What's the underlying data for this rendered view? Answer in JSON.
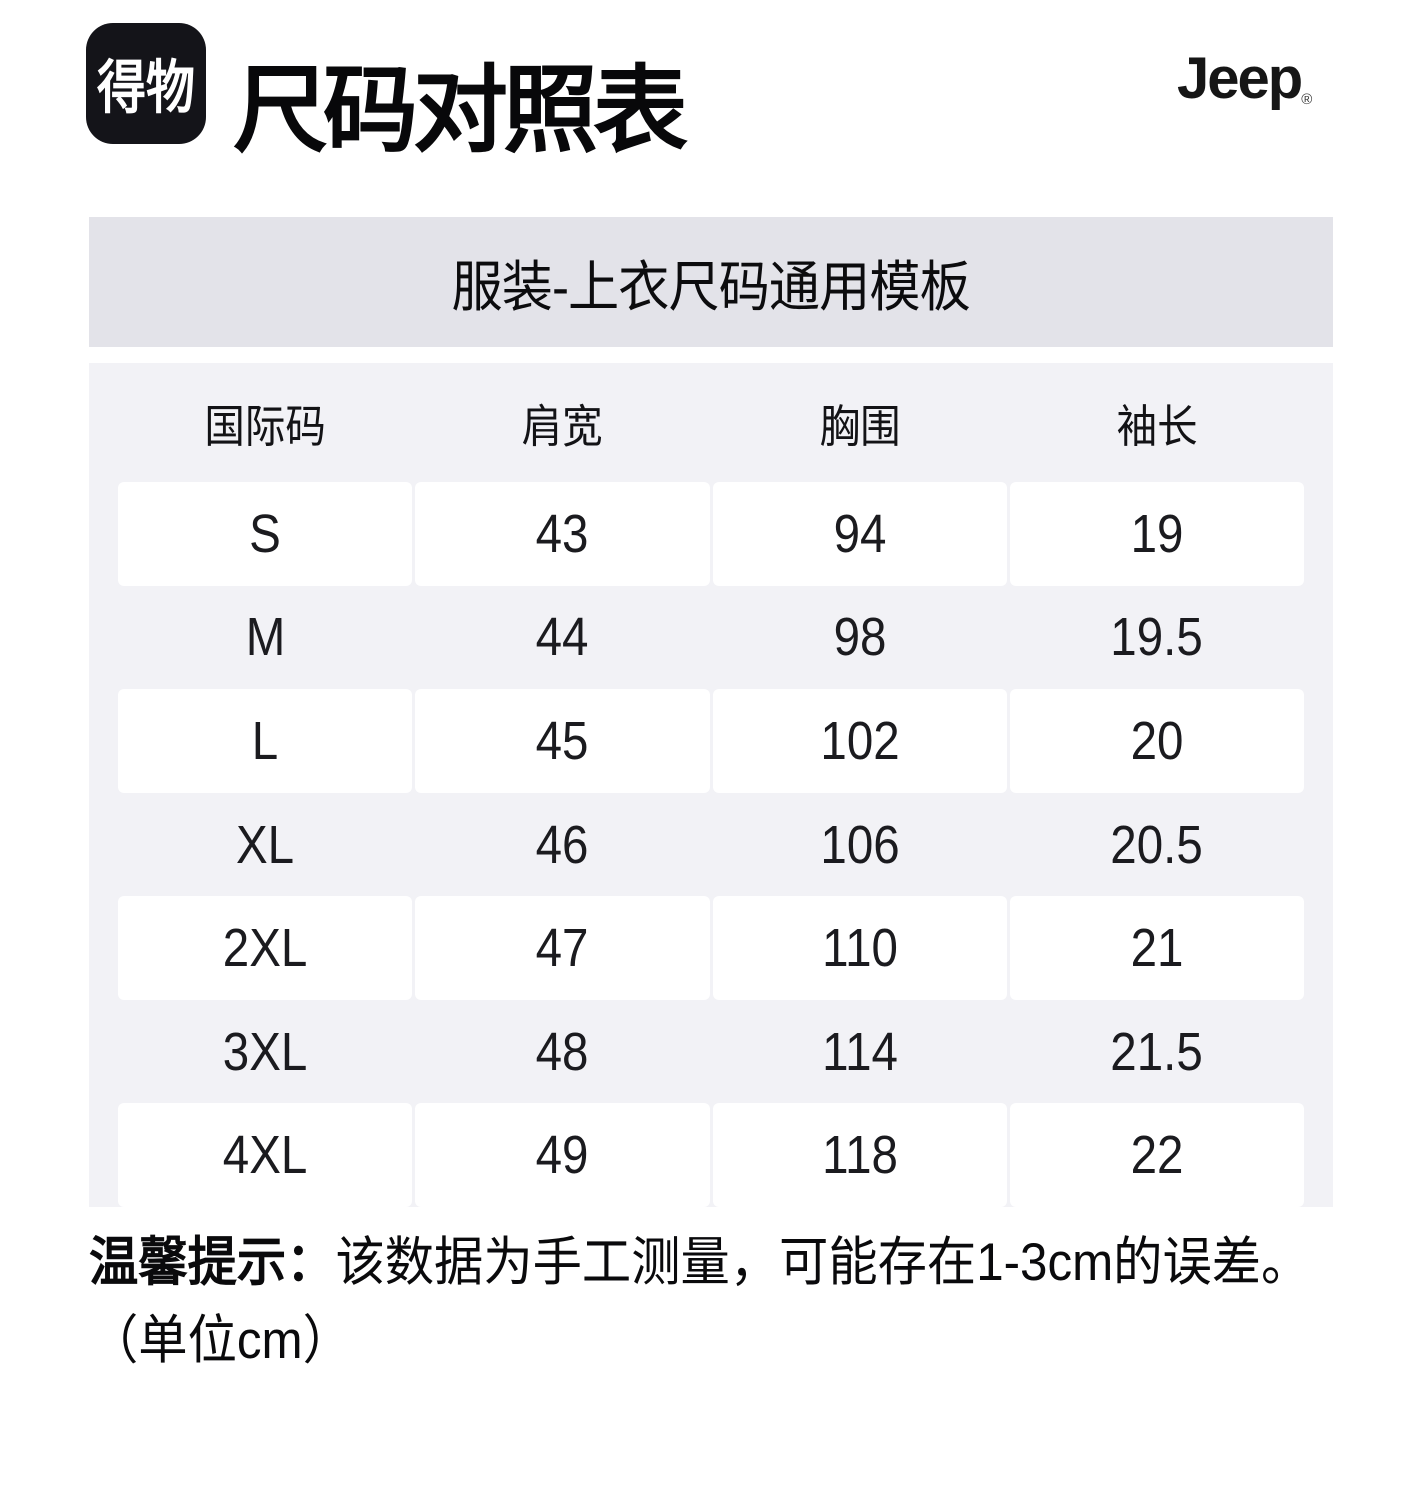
{
  "header": {
    "logo_text": "得物",
    "title": "尺码对照表",
    "brand": "Jeep",
    "registered_mark": "®"
  },
  "banner": {
    "title": "服装-上衣尺码通用模板"
  },
  "size_table": {
    "columns": [
      "国际码",
      "肩宽",
      "胸围",
      "袖长"
    ],
    "rows": [
      [
        "S",
        "43",
        "94",
        "19"
      ],
      [
        "M",
        "44",
        "98",
        "19.5"
      ],
      [
        "L",
        "45",
        "102",
        "20"
      ],
      [
        "XL",
        "46",
        "106",
        "20.5"
      ],
      [
        "2XL",
        "47",
        "110",
        "21"
      ],
      [
        "3XL",
        "48",
        "114",
        "21.5"
      ],
      [
        "4XL",
        "49",
        "118",
        "22"
      ]
    ],
    "unit": "cm"
  },
  "note": {
    "label": "温馨提示：",
    "text": "该数据为手工测量，可能存在1-3cm的误差。",
    "unit_line": "（单位cm）"
  },
  "colors": {
    "banner_bg": "#e3e3e9",
    "table_bg": "#f2f2f6",
    "row_alt_bg": "#ffffff",
    "logo_bg": "#141419",
    "text": "#101014"
  }
}
